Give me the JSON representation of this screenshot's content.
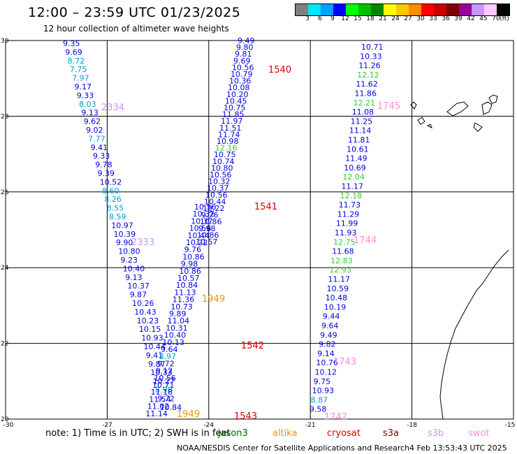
{
  "header": {
    "title": "12:00 – 23:59 UTC 01/23/2025",
    "subtitle": "12 hour collection of altimeter wave heights"
  },
  "legend": {
    "colors": [
      "#808080",
      "#00e5ff",
      "#00a0ff",
      "#0000ff",
      "#00ff00",
      "#00c000",
      "#008800",
      "#ffff00",
      "#ffc800",
      "#ff8c00",
      "#ff0000",
      "#c80000",
      "#800000",
      "#9b009b",
      "#c896ff",
      "#ffc8ff",
      "#000000"
    ],
    "labels": [
      "3",
      "6",
      "9",
      "12",
      "15",
      "18",
      "21",
      "24",
      "27",
      "30",
      "33",
      "36",
      "39",
      "42",
      "45",
      "70",
      "(ft)"
    ]
  },
  "map": {
    "lat_labels": [
      "30",
      "28",
      "26",
      "24",
      "22",
      "20"
    ],
    "lon_labels": [
      "-30",
      "-27",
      "-24",
      "-21",
      "-18",
      "-15"
    ],
    "track_labels": [
      {
        "text": "2334",
        "color": "#c896ff"
      },
      {
        "text": "2333",
        "color": "#c896ff"
      },
      {
        "text": "1540",
        "color": "#e00000"
      },
      {
        "text": "1541",
        "color": "#e00000"
      },
      {
        "text": "1542",
        "color": "#e00000"
      },
      {
        "text": "1543",
        "color": "#e00000"
      },
      {
        "text": "1745",
        "color": "#ff88dd"
      },
      {
        "text": "1744",
        "color": "#ff88dd"
      },
      {
        "text": "1743",
        "color": "#ff88dd"
      },
      {
        "text": "1742",
        "color": "#ff88dd"
      },
      {
        "text": "1949",
        "color": "#e69900"
      },
      {
        "text": "1949",
        "color": "#e69900"
      }
    ],
    "track_a_values": [
      "9.35",
      "9.69",
      "8.72",
      "7.75",
      "7.97",
      "9.17",
      "9.33",
      "8.03",
      "9.13",
      "9.62",
      "9.02",
      "7.77",
      "9.41",
      "9.33",
      "9.78",
      "9.39",
      "10.52",
      "8.60",
      "8.26",
      "8.55",
      "8.59",
      "10.97",
      "10.39",
      "9.90",
      "10.80",
      "9.23",
      "10.40",
      "9.13",
      "10.37",
      "9.87",
      "10.26",
      "10.43",
      "10.23",
      "10.15",
      "10.93",
      "10.44",
      "9.41",
      "9.87",
      "10.33",
      "10.27",
      "8.98",
      "9.72",
      "10.84"
    ],
    "track_b_values": [
      "10.56",
      "10.32",
      "10.37",
      "10.56",
      "10.44",
      "10.22",
      "9.76",
      "10.86",
      "9.98",
      "10.86",
      "10.57",
      "10.84",
      "11.13",
      "11.36",
      "10.73",
      "9.89",
      "11.04",
      "10.31",
      "10.40",
      "10.13",
      "9.64",
      "8.97",
      "9.72",
      "9.12",
      "10.56",
      "10.71",
      "11.18",
      "11.54",
      "11.02",
      "11.14",
      "11.60"
    ],
    "track_c_values": [
      "9.49",
      "9.80",
      "9.81",
      "9.69",
      "10.56",
      "10.79",
      "10.36",
      "10.08",
      "10.20",
      "10.45",
      "10.75",
      "11.85",
      "11.97",
      "11.51",
      "11.74",
      "10.98",
      "12.16",
      "10.75",
      "10.74",
      "10.80",
      "10.56",
      "10.32",
      "10.37",
      "10.56",
      "10.44",
      "10.22",
      "9.76",
      "10.86",
      "9.98",
      "10.86",
      "10.57"
    ],
    "track_d_values": [
      "10.71",
      "10.33",
      "11.26",
      "12.12",
      "11.62",
      "11.86",
      "12.21",
      "11.08",
      "11.25",
      "11.14",
      "11.81",
      "10.61",
      "11.49",
      "10.69",
      "12.04",
      "11.17",
      "12.18",
      "11.73",
      "11.29",
      "11.99",
      "11.93",
      "12.75",
      "11.68",
      "12.83",
      "12.93",
      "11.17",
      "10.59",
      "10.48",
      "10.19",
      "9.44",
      "9.64",
      "9.49",
      "9.82",
      "9.14",
      "10.76",
      "10.12",
      "9.75",
      "10.93",
      "8.87",
      "9.58"
    ]
  },
  "footer": {
    "note": "note:  1) Time is in UTC;  2) SWH is in feet",
    "satellites": [
      {
        "name": "jason3",
        "color": "#006400"
      },
      {
        "name": "altika",
        "color": "#e69900"
      },
      {
        "name": "cryosat",
        "color": "#e00000"
      },
      {
        "name": "s3a",
        "color": "#800000"
      },
      {
        "name": "s3b",
        "color": "#c896ff"
      },
      {
        "name": "swot",
        "color": "#ff88dd"
      }
    ],
    "credit": "NOAA/NESDIS Center for Satellite Applications and Research",
    "timestamp": "4 Feb 13:53:43 UTC 2025"
  }
}
